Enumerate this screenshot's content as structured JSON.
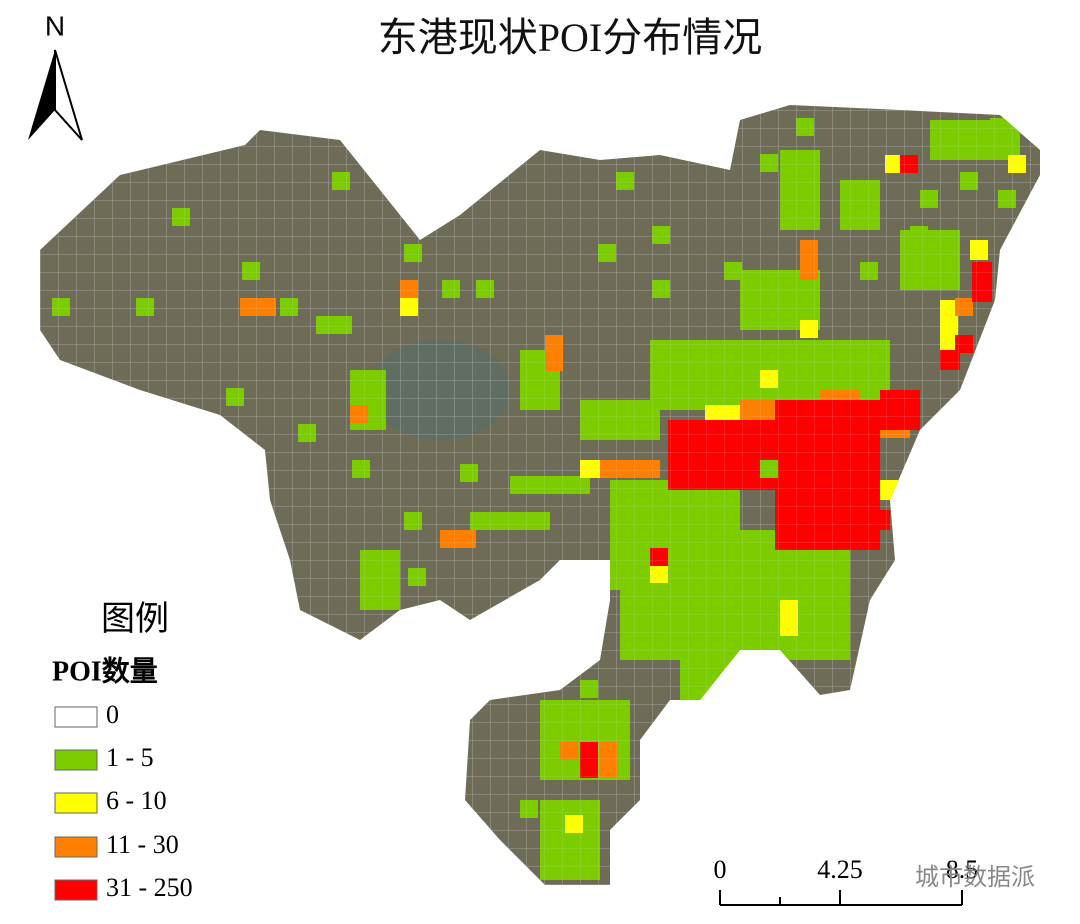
{
  "title": "东港现状POI分布情况",
  "north": "N",
  "legend": {
    "title": "图例",
    "subtitle": "POI数量",
    "items": [
      {
        "label": "0",
        "color": "#ffffff"
      },
      {
        "label": "1 - 5",
        "color": "#7ccd00"
      },
      {
        "label": "6 - 10",
        "color": "#ffff00"
      },
      {
        "label": "11 - 30",
        "color": "#ff8000"
      },
      {
        "label": "31 - 250",
        "color": "#ff0000"
      }
    ]
  },
  "scale_bar": {
    "labels": [
      "0",
      "4.25",
      "8.5"
    ]
  },
  "watermark": "城市数据派"
}
